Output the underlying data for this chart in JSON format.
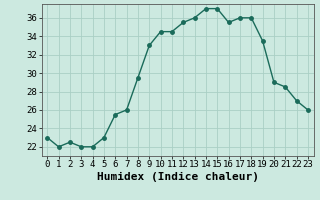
{
  "x": [
    0,
    1,
    2,
    3,
    4,
    5,
    6,
    7,
    8,
    9,
    10,
    11,
    12,
    13,
    14,
    15,
    16,
    17,
    18,
    19,
    20,
    21,
    22,
    23
  ],
  "y": [
    23,
    22,
    22.5,
    22,
    22,
    23,
    25.5,
    26,
    29.5,
    33,
    34.5,
    34.5,
    35.5,
    36,
    37,
    37,
    35.5,
    36,
    36,
    33.5,
    29,
    28.5,
    27,
    26
  ],
  "line_color": "#1a6b5a",
  "marker": "o",
  "marker_size": 2.5,
  "bg_color": "#cce9e0",
  "grid_color": "#aacfc5",
  "xlabel": "Humidex (Indice chaleur)",
  "xlim": [
    -0.5,
    23.5
  ],
  "ylim": [
    21.0,
    37.5
  ],
  "yticks": [
    22,
    24,
    26,
    28,
    30,
    32,
    34,
    36
  ],
  "xticks": [
    0,
    1,
    2,
    3,
    4,
    5,
    6,
    7,
    8,
    9,
    10,
    11,
    12,
    13,
    14,
    15,
    16,
    17,
    18,
    19,
    20,
    21,
    22,
    23
  ],
  "xlabel_fontsize": 8,
  "tick_fontsize": 6.5,
  "line_width": 1.0
}
